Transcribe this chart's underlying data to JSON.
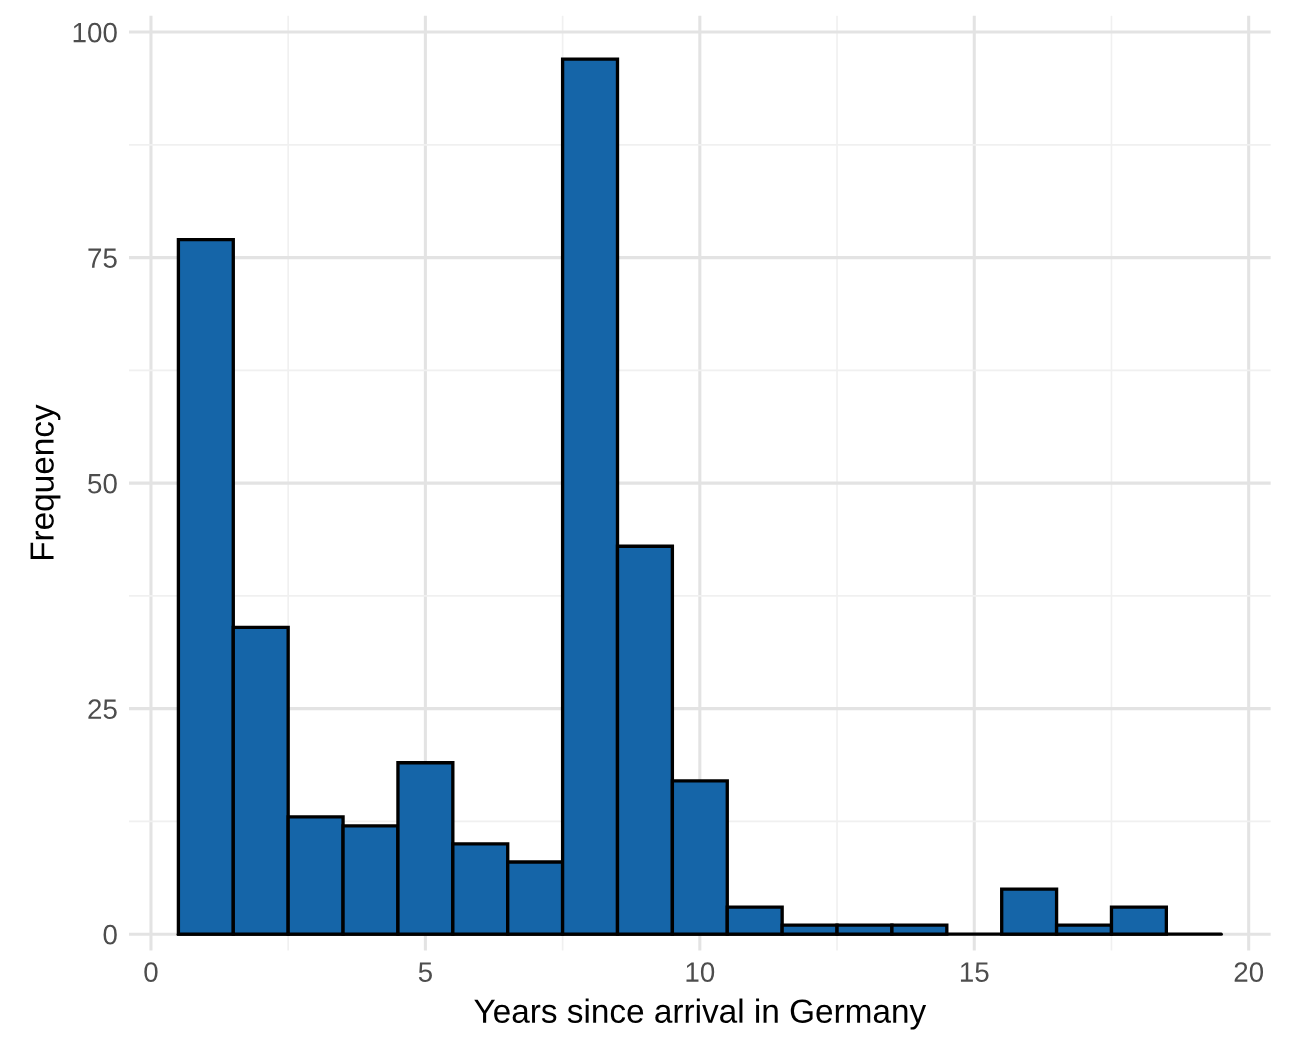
{
  "chart_data": {
    "type": "histogram",
    "xlabel": "Years since arrival in Germany",
    "ylabel": "Frequency",
    "bins": [
      0.5,
      1.5,
      2.5,
      3.5,
      4.5,
      5.5,
      6.5,
      7.5,
      8.5,
      9.5,
      10.5,
      11.5,
      12.5,
      13.5,
      14.5,
      15.5,
      16.5,
      17.5,
      18.5,
      19.5
    ],
    "values": [
      77,
      34,
      13,
      12,
      19,
      10,
      8,
      97,
      43,
      17,
      3,
      1,
      1,
      1,
      0,
      5,
      1,
      3,
      0
    ],
    "color": "#1565a8",
    "xlim": [
      -0.4,
      20.4
    ],
    "xticks": [
      0,
      5,
      10,
      15,
      20
    ],
    "ylim": [
      -1.8,
      101.8
    ],
    "yticks": [
      0,
      25,
      50,
      75,
      100
    ],
    "grid": true
  }
}
